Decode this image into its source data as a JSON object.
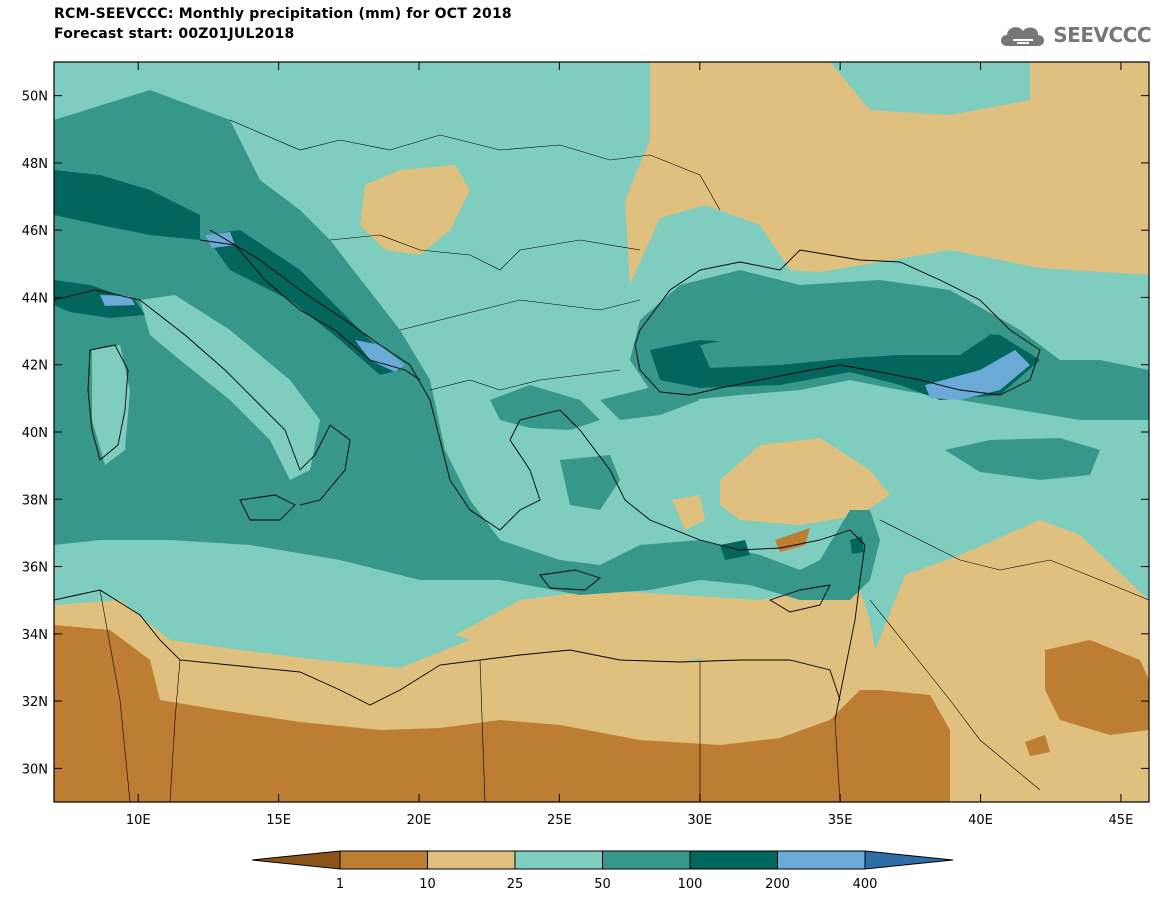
{
  "header": {
    "title": "RCM-SEEVCCC: Monthly precipitation (mm) for OCT 2018",
    "subtitle": "Forecast start: 00Z01JUL2018"
  },
  "logo": {
    "text": "SEEVCCC",
    "icon": "cloud-icon"
  },
  "map": {
    "lat_labels": [
      "50N",
      "48N",
      "46N",
      "44N",
      "42N",
      "40N",
      "38N",
      "36N",
      "34N",
      "32N",
      "30N"
    ],
    "lon_labels": [
      "10E",
      "15E",
      "20E",
      "25E",
      "30E",
      "35E",
      "40E",
      "45E"
    ],
    "lat_values": [
      50,
      48,
      46,
      44,
      42,
      40,
      38,
      36,
      34,
      32,
      30
    ],
    "lon_values": [
      10,
      15,
      20,
      25,
      30,
      35,
      40,
      45
    ],
    "lon_range": [
      7,
      46
    ],
    "lat_range": [
      29,
      51
    ]
  },
  "colorbar": {
    "labels": [
      "1",
      "10",
      "25",
      "50",
      "100",
      "200",
      "400"
    ],
    "colors": [
      "#8a5419",
      "#bd7d33",
      "#e0c07e",
      "#7ecdbf",
      "#36978a",
      "#02665e",
      "#6ba9d6",
      "#2e6ea6"
    ]
  }
}
